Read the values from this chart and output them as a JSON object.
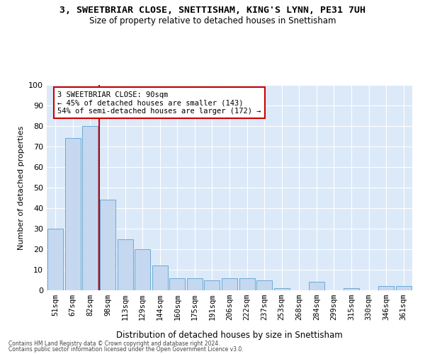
{
  "title1": "3, SWEETBRIAR CLOSE, SNETTISHAM, KING'S LYNN, PE31 7UH",
  "title2": "Size of property relative to detached houses in Snettisham",
  "xlabel": "Distribution of detached houses by size in Snettisham",
  "ylabel": "Number of detached properties",
  "categories": [
    "51sqm",
    "67sqm",
    "82sqm",
    "98sqm",
    "113sqm",
    "129sqm",
    "144sqm",
    "160sqm",
    "175sqm",
    "191sqm",
    "206sqm",
    "222sqm",
    "237sqm",
    "253sqm",
    "268sqm",
    "284sqm",
    "299sqm",
    "315sqm",
    "330sqm",
    "346sqm",
    "361sqm"
  ],
  "bar_heights": [
    30,
    74,
    80,
    44,
    25,
    20,
    12,
    6,
    6,
    5,
    6,
    6,
    5,
    1,
    0,
    4,
    0,
    1,
    0,
    2,
    2
  ],
  "bar_color": "#c5d8f0",
  "bar_edge_color": "#6aaad4",
  "vline_x": 2.5,
  "vline_color": "#cc0000",
  "annotation_text": "3 SWEETBRIAR CLOSE: 90sqm\n← 45% of detached houses are smaller (143)\n54% of semi-detached houses are larger (172) →",
  "annotation_box_color": "#ffffff",
  "annotation_box_edge": "#cc0000",
  "ylim": [
    0,
    100
  ],
  "yticks": [
    0,
    10,
    20,
    30,
    40,
    50,
    60,
    70,
    80,
    90,
    100
  ],
  "footer1": "Contains HM Land Registry data © Crown copyright and database right 2024.",
  "footer2": "Contains public sector information licensed under the Open Government Licence v3.0.",
  "plot_bg": "#dce9f8"
}
